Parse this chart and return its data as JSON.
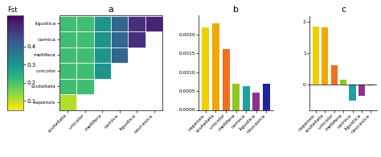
{
  "subspecies": [
    "capensis",
    "scutellata",
    "unicolor",
    "mellifera",
    "carnica",
    "ligustica",
    "caucasica"
  ],
  "heatmap_row_labels": [
    "ligustica",
    "carnica",
    "mellifera",
    "unicolor",
    "scutellata",
    "capensis"
  ],
  "heatmap_col_labels": [
    "scutellata",
    "unicolor",
    "mellifera",
    "carnica",
    "ligustica",
    "caucasica"
  ],
  "fst_matrix_display": [
    [
      0.21,
      0.21,
      0.3,
      0.4,
      0.5,
      0.52
    ],
    [
      0.21,
      0.21,
      0.3,
      0.4,
      0.5,
      null
    ],
    [
      0.21,
      0.21,
      0.3,
      0.4,
      null,
      null
    ],
    [
      0.21,
      0.21,
      0.3,
      null,
      null,
      null
    ],
    [
      0.21,
      0.21,
      null,
      null,
      null,
      null
    ],
    [
      0.11,
      null,
      null,
      null,
      null,
      null
    ]
  ],
  "colorbar_ticks": [
    0.1,
    0.2,
    0.3,
    0.4
  ],
  "colorbar_label": "Fst",
  "bar_colors_b": [
    "#f0d000",
    "#f0a800",
    "#f07020",
    "#90c820",
    "#20a0a0",
    "#903090",
    "#2020a0"
  ],
  "bar_colors_c": [
    "#f0d000",
    "#f0a800",
    "#f07020",
    "#90c820",
    "#20a0a0",
    "#903090",
    "#2020a0"
  ],
  "nucleotide_diversity": [
    0.0022,
    0.0023,
    0.00162,
    0.0007,
    0.00062,
    0.00045,
    0.0007
  ],
  "tajima_d": [
    1.85,
    1.82,
    0.62,
    0.15,
    -0.5,
    -0.35,
    -0.03
  ],
  "panel_labels": [
    "a",
    "b",
    "c"
  ],
  "cmap": "viridis_r",
  "vmin": 0.05,
  "vmax": 0.57
}
